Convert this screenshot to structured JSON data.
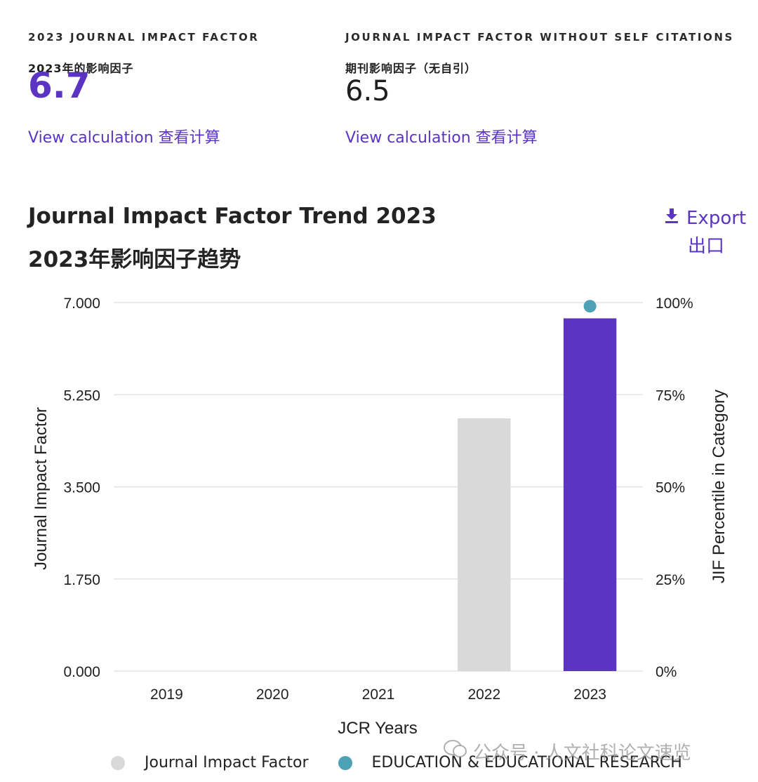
{
  "metrics": {
    "jif": {
      "label": "2023 JOURNAL IMPACT FACTOR",
      "label_cn": "2023年的影响因子",
      "value": "6.7",
      "link": "View calculation 查看计算"
    },
    "jif_no_self": {
      "label": "JOURNAL IMPACT FACTOR WITHOUT SELF CITATIONS",
      "label_cn": "期刊影响因子（无自引）",
      "value": "6.5",
      "link": "View calculation 查看计算"
    }
  },
  "trend": {
    "title": "Journal Impact Factor Trend 2023",
    "title_cn": "2023年影响因子趋势",
    "export_label": "Export",
    "export_label_cn": "出口"
  },
  "chart_data": {
    "type": "bar",
    "title": "Journal Impact Factor Trend 2023",
    "categories": [
      "2019",
      "2020",
      "2021",
      "2022",
      "2023"
    ],
    "xlabel": "JCR Years",
    "ylabel": "Journal Impact Factor",
    "ylabel_right": "JIF Percentile in Category",
    "ylim": [
      0,
      7
    ],
    "y_ticks": [
      "0.000",
      "1.750",
      "3.500",
      "5.250",
      "7.000"
    ],
    "ylim_right": [
      0,
      100
    ],
    "y_right_ticks": [
      "0%",
      "25%",
      "50%",
      "75%",
      "100%"
    ],
    "series": [
      {
        "name": "Journal Impact Factor",
        "type": "bar",
        "values": [
          null,
          null,
          null,
          4.8,
          6.7
        ]
      },
      {
        "name": "EDUCATION & EDUCATIONAL RESEARCH",
        "type": "scatter",
        "axis": "right",
        "values": [
          null,
          null,
          null,
          null,
          99.2
        ]
      }
    ],
    "colors": {
      "bar_default": "#d9d9d9",
      "bar_highlight": "#5b34c4",
      "percentile_dot": "#4da3b5",
      "grid": "#e3e3e3"
    },
    "legend": [
      "Journal Impact Factor",
      "EDUCATION & EDUCATIONAL RESEARCH"
    ]
  },
  "legend": {
    "jif": "Journal Impact Factor",
    "category": "EDUCATION & EDUCATIONAL RESEARCH"
  },
  "watermark": "公众号 · 人文社科论文速览"
}
